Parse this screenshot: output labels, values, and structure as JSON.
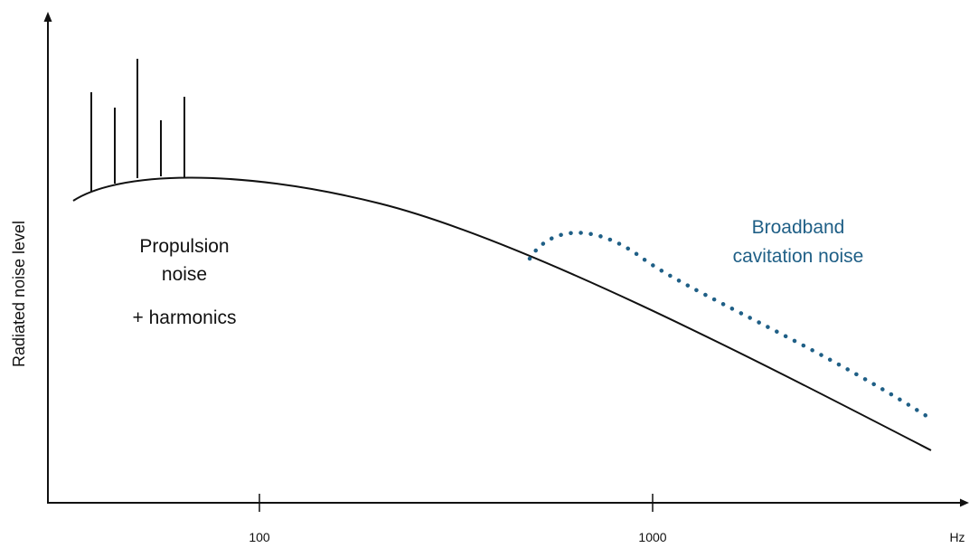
{
  "diagram": {
    "y_axis_label": "Radiated noise level",
    "x_unit_label": "Hz",
    "x_ticks": [
      "100",
      "1000"
    ],
    "annotations": {
      "propulsion_line1": "Propulsion",
      "propulsion_line2": "noise",
      "harmonics": "+ harmonics",
      "cavitation_line1": "Broadband",
      "cavitation_line2": "cavitation noise"
    },
    "colors": {
      "axis": "#111111",
      "propulsion_curve": "#111111",
      "cavitation_curve": "#1f5f86"
    },
    "x_scale": "log"
  }
}
